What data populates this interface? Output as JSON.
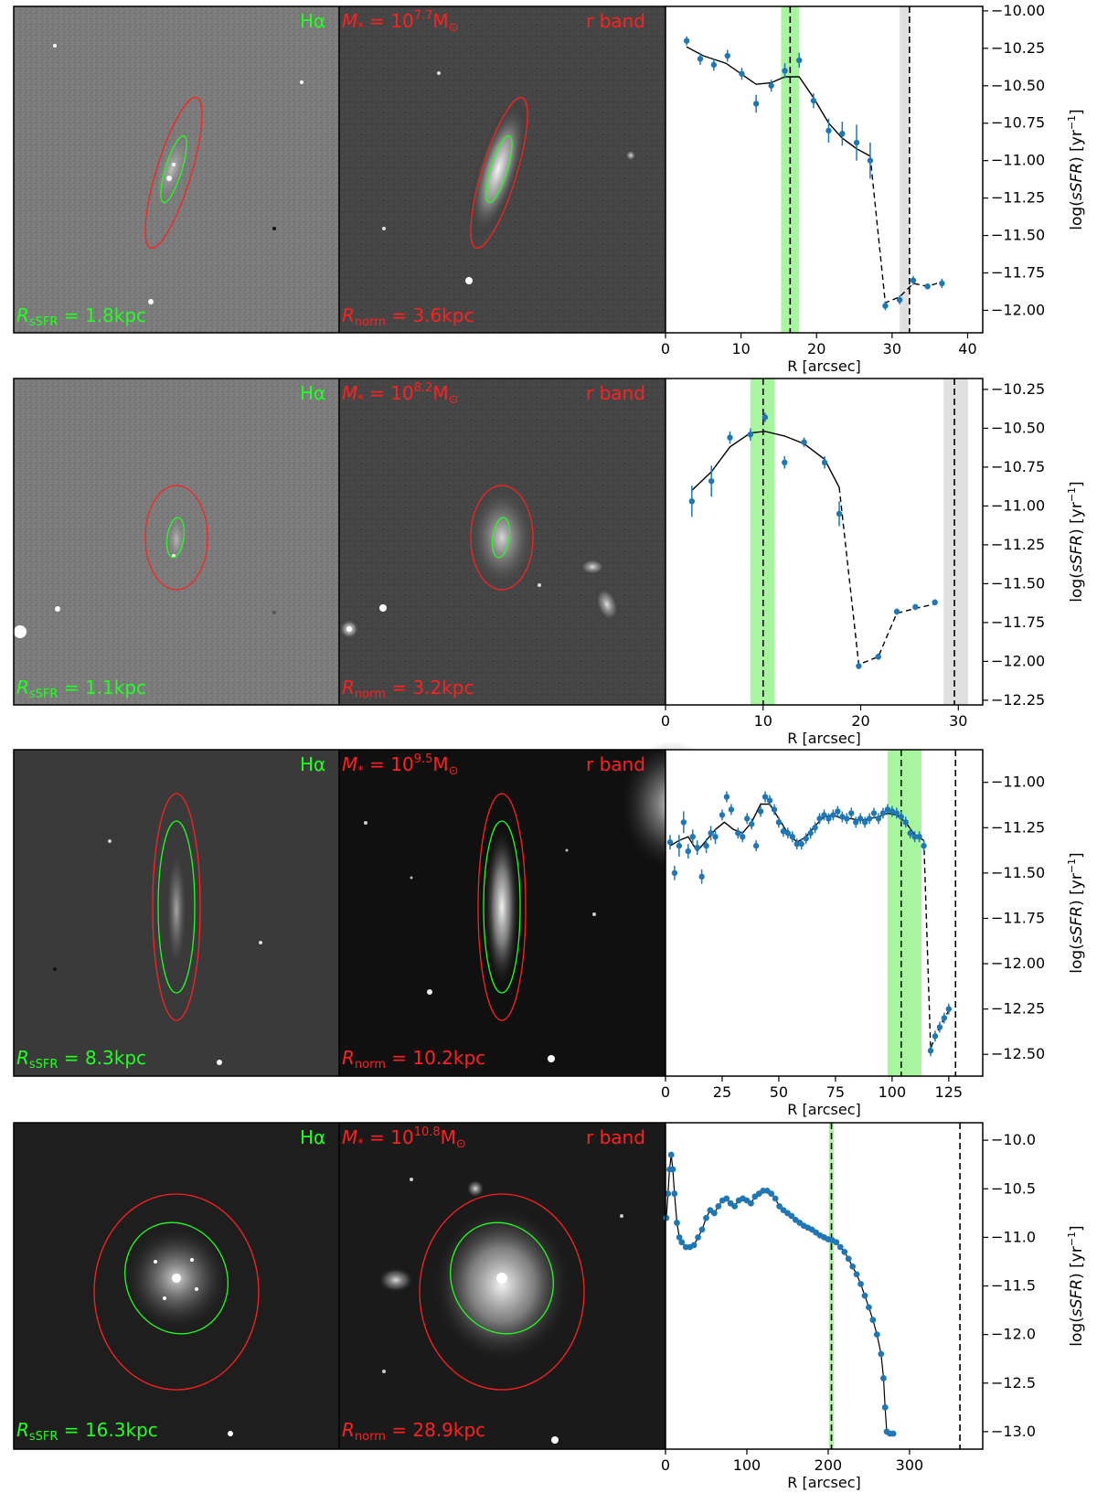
{
  "panels": [
    {
      "halpha_label": "Hα",
      "mass_label": "M* = 10^7.7 M⊙",
      "mass_exp": "7.7",
      "rband_label": "r band",
      "rssfr_label": "RsSFR = 1.8kpc",
      "rssfr_value": "1.8kpc",
      "rnorm_label": "Rnorm = 3.6kpc",
      "rnorm_value": "3.6kpc"
    },
    {
      "halpha_label": "Hα",
      "mass_label": "M* = 10^8.2 M⊙",
      "mass_exp": "8.2",
      "rband_label": "r band",
      "rssfr_label": "RsSFR = 1.1kpc",
      "rssfr_value": "1.1kpc",
      "rnorm_label": "Rnorm = 3.2kpc",
      "rnorm_value": "3.2kpc"
    },
    {
      "halpha_label": "Hα",
      "mass_label": "M* = 10^9.5 M⊙",
      "mass_exp": "9.5",
      "rband_label": "r band",
      "rssfr_label": "RsSFR = 8.3kpc",
      "rssfr_value": "8.3kpc",
      "rnorm_label": "Rnorm = 10.2kpc",
      "rnorm_value": "10.2kpc"
    },
    {
      "halpha_label": "Hα",
      "mass_label": "M* = 10^10.8 M⊙",
      "mass_exp": "10.8",
      "rband_label": "r band",
      "rssfr_label": "RsSFR = 16.3kpc",
      "rssfr_value": "16.3kpc",
      "rnorm_label": "Rnorm = 28.9kpc",
      "rnorm_value": "28.9kpc"
    }
  ],
  "chart_data": [
    {
      "type": "line",
      "xlabel": "R [arcsec]",
      "ylabel": "log(sSFR) [yr^-1]",
      "xlim": [
        0,
        42
      ],
      "ylim": [
        -12.15,
        -9.97
      ],
      "xticks": [
        0,
        10,
        20,
        30,
        40
      ],
      "yticks": [
        -12.0,
        -11.75,
        -11.5,
        -11.25,
        -11.0,
        -10.75,
        -10.5,
        -10.25,
        -10.0
      ],
      "points": [
        [
          2.8,
          -10.2
        ],
        [
          4.6,
          -10.32
        ],
        [
          6.4,
          -10.36
        ],
        [
          8.2,
          -10.3
        ],
        [
          10.1,
          -10.42
        ],
        [
          12.0,
          -10.62
        ],
        [
          14.0,
          -10.5
        ],
        [
          15.8,
          -10.4
        ],
        [
          17.7,
          -10.33
        ],
        [
          19.6,
          -10.6
        ],
        [
          21.6,
          -10.8
        ],
        [
          23.4,
          -10.82
        ],
        [
          25.3,
          -10.88
        ],
        [
          27.1,
          -11.0
        ],
        [
          29.1,
          -11.97
        ],
        [
          31.0,
          -11.93
        ],
        [
          32.8,
          -11.8
        ],
        [
          34.7,
          -11.84
        ],
        [
          36.6,
          -11.82
        ]
      ],
      "errors": [
        0.03,
        0.04,
        0.04,
        0.04,
        0.04,
        0.06,
        0.04,
        0.05,
        0.05,
        0.05,
        0.08,
        0.08,
        0.12,
        0.12,
        0.03,
        0.03,
        0.03,
        0.02,
        0.03
      ],
      "fit_solid": [
        [
          2.8,
          -10.24
        ],
        [
          5,
          -10.3
        ],
        [
          8,
          -10.35
        ],
        [
          10,
          -10.42
        ],
        [
          12,
          -10.49
        ],
        [
          14,
          -10.48
        ],
        [
          15.8,
          -10.44
        ],
        [
          17.7,
          -10.44
        ],
        [
          19.6,
          -10.58
        ],
        [
          21.6,
          -10.75
        ],
        [
          23.4,
          -10.85
        ],
        [
          25.3,
          -10.92
        ],
        [
          27.1,
          -10.97
        ]
      ],
      "fit_dashed": [
        [
          27.1,
          -10.97
        ],
        [
          29.1,
          -11.95
        ],
        [
          31.0,
          -11.91
        ],
        [
          32.8,
          -11.82
        ],
        [
          34.7,
          -11.84
        ],
        [
          36.6,
          -11.81
        ]
      ],
      "vline_green": 16.5,
      "green_band": [
        15.3,
        17.7
      ],
      "vline_black": 32.3,
      "grey_band": [
        31.0,
        32.3
      ]
    },
    {
      "type": "line",
      "xlabel": "R [arcsec]",
      "ylabel": "log(sSFR) [yr^-1]",
      "xlim": [
        0,
        32.5
      ],
      "ylim": [
        -12.28,
        -10.18
      ],
      "xticks": [
        0,
        10,
        20,
        30
      ],
      "yticks": [
        -12.25,
        -12.0,
        -11.75,
        -11.5,
        -11.25,
        -11.0,
        -10.75,
        -10.5,
        -10.25
      ],
      "points": [
        [
          2.7,
          -10.97
        ],
        [
          4.7,
          -10.84
        ],
        [
          6.6,
          -10.56
        ],
        [
          8.7,
          -10.54
        ],
        [
          10.2,
          -10.43
        ],
        [
          12.2,
          -10.72
        ],
        [
          14.2,
          -10.59
        ],
        [
          16.3,
          -10.72
        ],
        [
          17.8,
          -11.05
        ],
        [
          19.8,
          -12.03
        ],
        [
          21.8,
          -11.97
        ],
        [
          23.7,
          -11.68
        ],
        [
          25.6,
          -11.65
        ],
        [
          27.6,
          -11.62
        ]
      ],
      "errors": [
        0.1,
        0.1,
        0.04,
        0.04,
        0.03,
        0.04,
        0.03,
        0.04,
        0.08,
        0.02,
        0.02,
        0.02,
        0.02,
        0.02
      ],
      "fit_solid": [
        [
          2.7,
          -10.9
        ],
        [
          4.7,
          -10.78
        ],
        [
          6.6,
          -10.62
        ],
        [
          8.7,
          -10.53
        ],
        [
          10.2,
          -10.52
        ],
        [
          12.2,
          -10.55
        ],
        [
          14.2,
          -10.6
        ],
        [
          16.3,
          -10.7
        ],
        [
          17.8,
          -10.88
        ]
      ],
      "fit_dashed": [
        [
          17.8,
          -10.88
        ],
        [
          19.8,
          -12.02
        ],
        [
          21.8,
          -11.97
        ],
        [
          23.7,
          -11.69
        ],
        [
          25.6,
          -11.66
        ],
        [
          27.6,
          -11.63
        ]
      ],
      "vline_green": 10.0,
      "green_band": [
        8.7,
        11.2
      ],
      "vline_black": 29.6,
      "grey_band": [
        28.5,
        31.0
      ]
    },
    {
      "type": "line",
      "xlabel": "R [arcsec]",
      "ylabel": "log(sSFR) [yr^-1]",
      "xlim": [
        0,
        140
      ],
      "ylim": [
        -12.62,
        -10.82
      ],
      "xticks": [
        0,
        25,
        50,
        75,
        100,
        125
      ],
      "yticks": [
        -12.5,
        -12.25,
        -12.0,
        -11.75,
        -11.5,
        -11.25,
        -11.0
      ],
      "points": [
        [
          2,
          -11.33
        ],
        [
          4,
          -11.5
        ],
        [
          6,
          -11.35
        ],
        [
          8,
          -11.22
        ],
        [
          10,
          -11.38
        ],
        [
          12,
          -11.3
        ],
        [
          14,
          -11.36
        ],
        [
          16,
          -11.52
        ],
        [
          18,
          -11.35
        ],
        [
          20,
          -11.28
        ],
        [
          22,
          -11.3
        ],
        [
          25,
          -11.18
        ],
        [
          27,
          -11.08
        ],
        [
          29,
          -11.15
        ],
        [
          32,
          -11.28
        ],
        [
          34,
          -11.3
        ],
        [
          36,
          -11.2
        ],
        [
          38,
          -11.23
        ],
        [
          40,
          -11.35
        ],
        [
          42,
          -11.16
        ],
        [
          44,
          -11.08
        ],
        [
          46,
          -11.1
        ],
        [
          48,
          -11.15
        ],
        [
          50,
          -11.22
        ],
        [
          52,
          -11.27
        ],
        [
          54,
          -11.28
        ],
        [
          56,
          -11.3
        ],
        [
          58,
          -11.34
        ],
        [
          60,
          -11.34
        ],
        [
          62,
          -11.31
        ],
        [
          64,
          -11.28
        ],
        [
          66,
          -11.25
        ],
        [
          68,
          -11.2
        ],
        [
          70,
          -11.18
        ],
        [
          72,
          -11.2
        ],
        [
          74,
          -11.18
        ],
        [
          76,
          -11.16
        ],
        [
          78,
          -11.19
        ],
        [
          80,
          -11.2
        ],
        [
          82,
          -11.17
        ],
        [
          84,
          -11.22
        ],
        [
          86,
          -11.2
        ],
        [
          88,
          -11.22
        ],
        [
          90,
          -11.2
        ],
        [
          92,
          -11.17
        ],
        [
          94,
          -11.2
        ],
        [
          96,
          -11.17
        ],
        [
          98,
          -11.15
        ],
        [
          100,
          -11.16
        ],
        [
          102,
          -11.17
        ],
        [
          104,
          -11.19
        ],
        [
          106,
          -11.22
        ],
        [
          108,
          -11.28
        ],
        [
          110,
          -11.3
        ],
        [
          112,
          -11.3
        ],
        [
          114,
          -11.35
        ],
        [
          117,
          -12.48
        ],
        [
          119,
          -12.4
        ],
        [
          121,
          -12.35
        ],
        [
          123,
          -12.3
        ],
        [
          125,
          -12.25
        ]
      ],
      "errors": [
        0.04,
        0.04,
        0.06,
        0.06,
        0.04,
        0.04,
        0.04,
        0.04,
        0.04,
        0.04,
        0.04,
        0.03,
        0.03,
        0.03,
        0.03,
        0.03,
        0.03,
        0.03,
        0.03,
        0.03,
        0.03,
        0.03,
        0.03,
        0.03,
        0.03,
        0.03,
        0.03,
        0.03,
        0.03,
        0.03,
        0.03,
        0.03,
        0.03,
        0.03,
        0.03,
        0.03,
        0.03,
        0.03,
        0.03,
        0.03,
        0.03,
        0.03,
        0.03,
        0.03,
        0.03,
        0.03,
        0.03,
        0.03,
        0.03,
        0.03,
        0.03,
        0.03,
        0.03,
        0.03,
        0.03,
        0.03,
        0.03,
        0.03,
        0.03,
        0.03,
        0.03
      ],
      "fit_solid": [
        [
          2,
          -11.35
        ],
        [
          6,
          -11.32
        ],
        [
          10,
          -11.3
        ],
        [
          14,
          -11.38
        ],
        [
          18,
          -11.32
        ],
        [
          22,
          -11.26
        ],
        [
          26,
          -11.22
        ],
        [
          30,
          -11.26
        ],
        [
          34,
          -11.28
        ],
        [
          38,
          -11.22
        ],
        [
          42,
          -11.12
        ],
        [
          46,
          -11.12
        ],
        [
          50,
          -11.2
        ],
        [
          54,
          -11.28
        ],
        [
          58,
          -11.33
        ],
        [
          62,
          -11.3
        ],
        [
          66,
          -11.24
        ],
        [
          70,
          -11.19
        ],
        [
          74,
          -11.18
        ],
        [
          78,
          -11.2
        ],
        [
          82,
          -11.2
        ],
        [
          86,
          -11.21
        ],
        [
          90,
          -11.2
        ],
        [
          94,
          -11.19
        ],
        [
          98,
          -11.17
        ],
        [
          102,
          -11.18
        ],
        [
          106,
          -11.22
        ],
        [
          110,
          -11.29
        ],
        [
          114,
          -11.32
        ]
      ],
      "fit_dashed": [
        [
          114,
          -11.32
        ],
        [
          117,
          -12.47
        ],
        [
          119,
          -12.4
        ],
        [
          121,
          -12.35
        ],
        [
          123,
          -12.3
        ],
        [
          125,
          -12.26
        ]
      ],
      "vline_green": 104,
      "green_band": [
        98,
        113
      ],
      "vline_black": 128,
      "grey_band": null
    },
    {
      "type": "line",
      "xlabel": "R [arcsec]",
      "ylabel": "log(sSFR) [yr^-1]",
      "xlim": [
        0,
        390
      ],
      "ylim": [
        -13.18,
        -9.82
      ],
      "xticks": [
        0,
        100,
        200,
        300
      ],
      "yticks": [
        -13.0,
        -12.5,
        -12.0,
        -11.5,
        -11.0,
        -10.5,
        -10.0
      ],
      "curve": [
        [
          1,
          -10.8
        ],
        [
          3,
          -10.55
        ],
        [
          5,
          -10.3
        ],
        [
          7,
          -10.15
        ],
        [
          9,
          -10.3
        ],
        [
          11,
          -10.55
        ],
        [
          14,
          -10.85
        ],
        [
          17,
          -11.0
        ],
        [
          20,
          -11.05
        ],
        [
          25,
          -11.1
        ],
        [
          30,
          -11.1
        ],
        [
          35,
          -11.08
        ],
        [
          40,
          -11.0
        ],
        [
          45,
          -10.92
        ],
        [
          50,
          -10.8
        ],
        [
          55,
          -10.72
        ],
        [
          60,
          -10.75
        ],
        [
          65,
          -10.68
        ],
        [
          70,
          -10.62
        ],
        [
          75,
          -10.6
        ],
        [
          80,
          -10.65
        ],
        [
          85,
          -10.68
        ],
        [
          90,
          -10.62
        ],
        [
          95,
          -10.6
        ],
        [
          100,
          -10.62
        ],
        [
          105,
          -10.65
        ],
        [
          110,
          -10.58
        ],
        [
          115,
          -10.55
        ],
        [
          120,
          -10.52
        ],
        [
          125,
          -10.52
        ],
        [
          130,
          -10.55
        ],
        [
          135,
          -10.6
        ],
        [
          140,
          -10.68
        ],
        [
          145,
          -10.72
        ],
        [
          150,
          -10.75
        ],
        [
          155,
          -10.78
        ],
        [
          160,
          -10.82
        ],
        [
          165,
          -10.85
        ],
        [
          170,
          -10.88
        ],
        [
          175,
          -10.9
        ],
        [
          180,
          -10.92
        ],
        [
          185,
          -10.95
        ],
        [
          190,
          -10.98
        ],
        [
          195,
          -11.0
        ],
        [
          200,
          -11.02
        ],
        [
          205,
          -11.03
        ],
        [
          210,
          -11.05
        ],
        [
          215,
          -11.1
        ],
        [
          220,
          -11.15
        ],
        [
          225,
          -11.22
        ],
        [
          230,
          -11.3
        ],
        [
          235,
          -11.38
        ],
        [
          240,
          -11.48
        ],
        [
          245,
          -11.6
        ],
        [
          250,
          -11.72
        ],
        [
          255,
          -11.85
        ],
        [
          260,
          -12.0
        ],
        [
          265,
          -12.2
        ],
        [
          268,
          -12.45
        ],
        [
          270,
          -12.75
        ],
        [
          272,
          -13.0
        ],
        [
          276,
          -13.02
        ],
        [
          280,
          -13.02
        ]
      ],
      "vline_green": 204,
      "green_band": [
        201,
        207
      ],
      "vline_black": 362,
      "grey_band": null
    }
  ]
}
